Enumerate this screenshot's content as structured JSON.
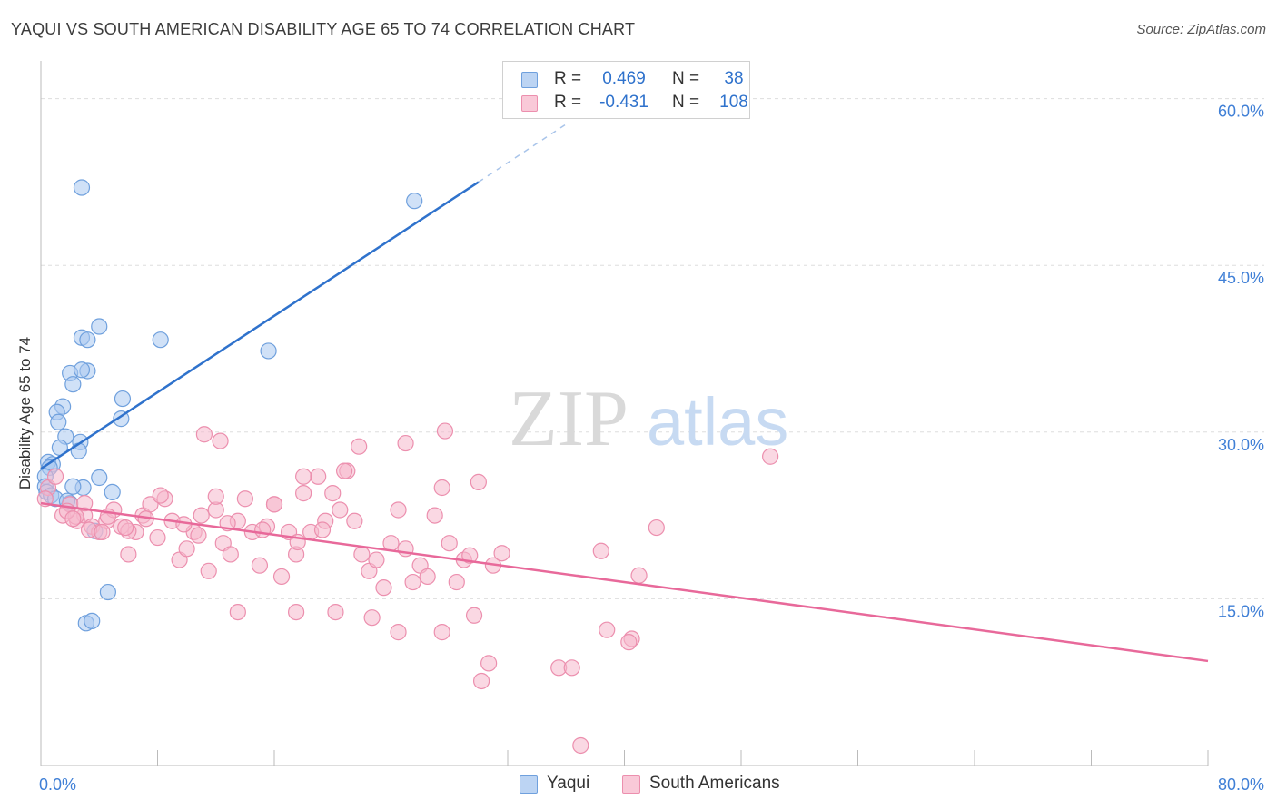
{
  "title": "YAQUI VS SOUTH AMERICAN DISABILITY AGE 65 TO 74 CORRELATION CHART",
  "source": "Source: ZipAtlas.com",
  "watermark": {
    "zip": "ZIP",
    "atlas": "atlas"
  },
  "colors": {
    "blue_fill": "#a9c8f0",
    "blue_stroke": "#6fa0dd",
    "blue_line": "#2f72cc",
    "pink_fill": "#f5b8cc",
    "pink_stroke": "#ec8fae",
    "pink_line": "#e8699a",
    "tick_label": "#3f7fd6",
    "grid": "#dddddd"
  },
  "legend": {
    "rows": [
      {
        "r_label": "R =",
        "r_value": "0.469",
        "n_label": "N =",
        "n_value": "38"
      },
      {
        "r_label": "R =",
        "r_value": "-0.431",
        "n_label": "N =",
        "n_value": "108"
      }
    ]
  },
  "chart_data": {
    "type": "scatter",
    "title": "YAQUI VS SOUTH AMERICAN DISABILITY AGE 65 TO 74 CORRELATION CHART",
    "xlabel": "",
    "ylabel": "Disability Age 65 to 74",
    "xlim": [
      0,
      80
    ],
    "ylim": [
      0,
      62.5
    ],
    "x_tick_labels": [
      "0.0%",
      "80.0%"
    ],
    "y_ticks": [
      15,
      30,
      45,
      60
    ],
    "y_tick_labels": [
      "15.0%",
      "30.0%",
      "45.0%",
      "60.0%"
    ],
    "grid": true,
    "legend_position": "top-center",
    "series": [
      {
        "name": "Yaqui",
        "points": [
          [
            2.8,
            52.0
          ],
          [
            25.6,
            50.8
          ],
          [
            2.8,
            38.5
          ],
          [
            4.0,
            39.5
          ],
          [
            3.2,
            38.3
          ],
          [
            8.2,
            38.3
          ],
          [
            15.6,
            37.3
          ],
          [
            2.0,
            35.3
          ],
          [
            3.2,
            35.5
          ],
          [
            2.2,
            34.3
          ],
          [
            2.8,
            35.6
          ],
          [
            5.6,
            33.0
          ],
          [
            1.5,
            32.3
          ],
          [
            1.1,
            31.8
          ],
          [
            1.2,
            30.9
          ],
          [
            5.5,
            31.2
          ],
          [
            1.7,
            29.6
          ],
          [
            2.7,
            29.1
          ],
          [
            1.3,
            28.6
          ],
          [
            2.6,
            28.3
          ],
          [
            0.5,
            27.3
          ],
          [
            0.8,
            27.1
          ],
          [
            0.6,
            26.8
          ],
          [
            0.3,
            26.0
          ],
          [
            4.0,
            25.9
          ],
          [
            2.9,
            25.0
          ],
          [
            2.2,
            25.1
          ],
          [
            0.3,
            25.1
          ],
          [
            0.4,
            24.6
          ],
          [
            4.9,
            24.6
          ],
          [
            0.7,
            24.3
          ],
          [
            1.0,
            24.0
          ],
          [
            2.0,
            23.6
          ],
          [
            1.8,
            23.8
          ],
          [
            3.7,
            21.1
          ],
          [
            4.6,
            15.6
          ],
          [
            3.1,
            12.8
          ],
          [
            3.5,
            13.0
          ]
        ],
        "trend": {
          "x": [
            0,
            30
          ],
          "y": [
            26.7,
            52.5
          ]
        },
        "trend_dashed": {
          "x": [
            30,
            36
          ],
          "y": [
            52.5,
            57.7
          ]
        }
      },
      {
        "name": "South Americans",
        "points": [
          [
            0.5,
            25.0
          ],
          [
            1.0,
            26.0
          ],
          [
            0.3,
            24.0
          ],
          [
            1.5,
            22.5
          ],
          [
            2.0,
            23.5
          ],
          [
            2.5,
            22.0
          ],
          [
            3.0,
            22.5
          ],
          [
            3.5,
            21.5
          ],
          [
            4.0,
            21.0
          ],
          [
            4.5,
            22.0
          ],
          [
            5.0,
            23.0
          ],
          [
            5.5,
            21.5
          ],
          [
            6.0,
            19.0
          ],
          [
            6.5,
            21.0
          ],
          [
            7.0,
            22.5
          ],
          [
            7.5,
            23.5
          ],
          [
            8.0,
            20.5
          ],
          [
            8.5,
            24.0
          ],
          [
            9.0,
            22.0
          ],
          [
            9.5,
            18.5
          ],
          [
            10.0,
            19.5
          ],
          [
            10.5,
            21.0
          ],
          [
            11.0,
            22.5
          ],
          [
            11.5,
            17.5
          ],
          [
            12.0,
            23.0
          ],
          [
            12.5,
            20.0
          ],
          [
            13.0,
            19.0
          ],
          [
            13.5,
            22.0
          ],
          [
            14.0,
            24.0
          ],
          [
            14.5,
            21.0
          ],
          [
            15.0,
            18.0
          ],
          [
            15.5,
            21.5
          ],
          [
            16.0,
            23.5
          ],
          [
            16.5,
            17.0
          ],
          [
            17.0,
            21.0
          ],
          [
            17.5,
            19.0
          ],
          [
            18.0,
            24.5
          ],
          [
            18.5,
            21.0
          ],
          [
            19.0,
            26.0
          ],
          [
            19.5,
            22.0
          ],
          [
            20.0,
            24.5
          ],
          [
            20.5,
            23.0
          ],
          [
            21.0,
            26.5
          ],
          [
            21.5,
            22.0
          ],
          [
            22.0,
            19.0
          ],
          [
            22.5,
            17.5
          ],
          [
            23.0,
            18.5
          ],
          [
            23.5,
            16.0
          ],
          [
            24.0,
            20.0
          ],
          [
            24.5,
            23.0
          ],
          [
            25.0,
            19.5
          ],
          [
            25.5,
            16.5
          ],
          [
            26.0,
            18.0
          ],
          [
            26.5,
            17.0
          ],
          [
            27.0,
            22.5
          ],
          [
            27.5,
            25.0
          ],
          [
            28.0,
            20.0
          ],
          [
            28.5,
            16.5
          ],
          [
            29.0,
            18.5
          ],
          [
            30.0,
            25.5
          ],
          [
            31.0,
            18.0
          ],
          [
            13.5,
            13.8
          ],
          [
            17.5,
            13.8
          ],
          [
            20.2,
            13.8
          ],
          [
            22.7,
            13.3
          ],
          [
            24.5,
            12.0
          ],
          [
            27.5,
            12.0
          ],
          [
            29.7,
            13.5
          ],
          [
            11.2,
            29.8
          ],
          [
            12.3,
            29.2
          ],
          [
            21.8,
            28.7
          ],
          [
            25.0,
            29.0
          ],
          [
            27.7,
            30.1
          ],
          [
            50.0,
            27.8
          ],
          [
            16.0,
            23.5
          ],
          [
            18.0,
            26.0
          ],
          [
            20.8,
            26.5
          ],
          [
            12.0,
            24.2
          ],
          [
            8.2,
            24.3
          ],
          [
            6.0,
            21.1
          ],
          [
            3.3,
            21.2
          ],
          [
            4.2,
            21.0
          ],
          [
            2.4,
            22.4
          ],
          [
            1.8,
            22.9
          ],
          [
            2.2,
            22.2
          ],
          [
            3.0,
            23.6
          ],
          [
            4.6,
            22.4
          ],
          [
            5.8,
            21.4
          ],
          [
            7.2,
            22.2
          ],
          [
            9.8,
            21.7
          ],
          [
            10.8,
            20.7
          ],
          [
            12.8,
            21.8
          ],
          [
            15.2,
            21.2
          ],
          [
            17.6,
            20.1
          ],
          [
            19.3,
            21.2
          ],
          [
            29.4,
            18.9
          ],
          [
            31.6,
            19.1
          ],
          [
            38.4,
            19.3
          ],
          [
            42.2,
            21.4
          ],
          [
            41.0,
            17.1
          ],
          [
            38.8,
            12.2
          ],
          [
            40.5,
            11.4
          ],
          [
            40.3,
            11.1
          ],
          [
            35.5,
            8.8
          ],
          [
            36.4,
            8.8
          ],
          [
            30.7,
            9.2
          ],
          [
            30.2,
            7.6
          ],
          [
            37.0,
            1.8
          ]
        ],
        "trend": {
          "x": [
            0,
            80
          ],
          "y": [
            23.6,
            9.4
          ]
        }
      }
    ]
  },
  "bottom_legend": [
    {
      "label": "Yaqui"
    },
    {
      "label": "South Americans"
    }
  ]
}
